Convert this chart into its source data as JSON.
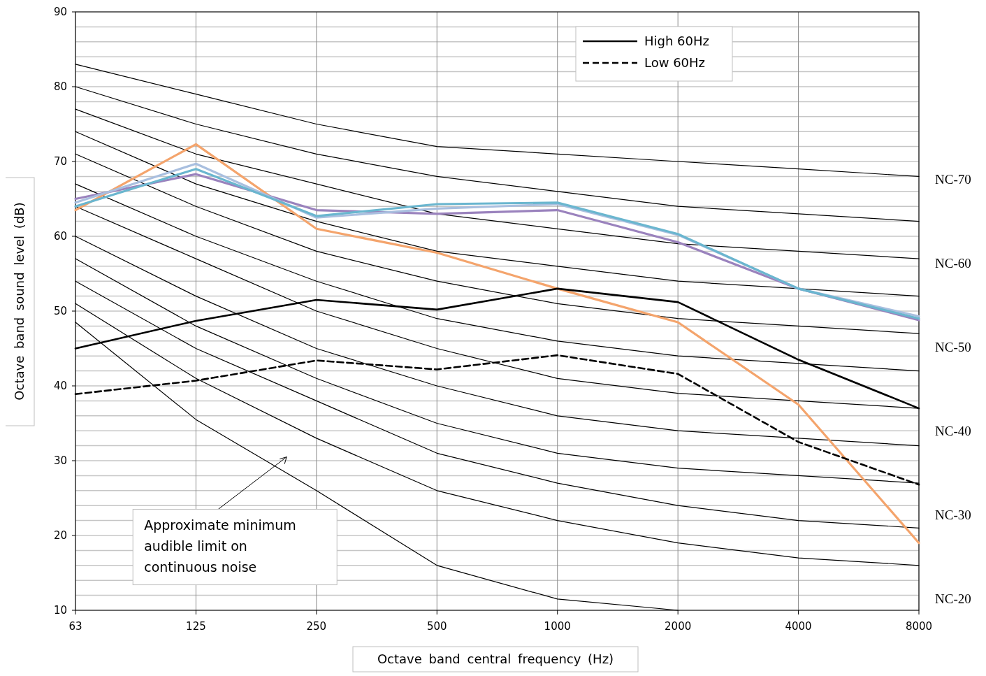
{
  "chart_data": {
    "type": "line",
    "xlabel": "Octave band central frequency (Hz)",
    "ylabel": "Octave band sound level (dB)",
    "categories": [
      "63",
      "125",
      "250",
      "500",
      "1000",
      "2000",
      "4000",
      "8000"
    ],
    "ylim": [
      10,
      90
    ],
    "yticks": [
      10,
      {
        "value": 12,
        "label": null
      },
      {
        "value": 14,
        "label": null
      },
      {
        "value": 16,
        "label": null
      },
      {
        "value": 18,
        "label": null
      },
      20,
      {
        "value": 22,
        "label": null
      },
      {
        "value": 24,
        "label": null
      },
      {
        "value": 26,
        "label": null
      },
      {
        "value": 28,
        "label": null
      },
      30,
      {
        "value": 32,
        "label": null
      },
      {
        "value": 34,
        "label": null
      },
      {
        "value": 36,
        "label": null
      },
      {
        "value": 38,
        "label": null
      },
      40,
      {
        "value": 42,
        "label": null
      },
      {
        "value": 44,
        "label": null
      },
      {
        "value": 46,
        "label": null
      },
      {
        "value": 48,
        "label": null
      },
      50,
      {
        "value": 52,
        "label": null
      },
      {
        "value": 54,
        "label": null
      },
      {
        "value": 56,
        "label": null
      },
      {
        "value": 58,
        "label": null
      },
      60,
      {
        "value": 62,
        "label": null
      },
      {
        "value": 64,
        "label": null
      },
      {
        "value": 66,
        "label": null
      },
      {
        "value": 68,
        "label": null
      },
      70,
      {
        "value": 72,
        "label": null
      },
      {
        "value": 74,
        "label": null
      },
      {
        "value": 76,
        "label": null
      },
      {
        "value": 78,
        "label": null
      },
      80,
      {
        "value": 82,
        "label": null
      },
      {
        "value": 84,
        "label": null
      },
      {
        "value": 86,
        "label": null
      },
      {
        "value": 88,
        "label": null
      },
      90
    ],
    "grid": true,
    "legend": "top",
    "marker": "none",
    "series": [
      {
        "color": "#000000",
        "values": [
          83,
          79,
          75,
          72,
          71,
          70,
          69,
          68
        ]
      },
      {
        "color": "#000000",
        "values": [
          80,
          75,
          71,
          68,
          66,
          64,
          63,
          62
        ]
      },
      {
        "color": "#000000",
        "values": [
          77,
          71,
          67,
          63,
          61,
          59,
          58,
          57
        ]
      },
      {
        "color": "#000000",
        "values": [
          74,
          67,
          62,
          58,
          56,
          54,
          53,
          52
        ]
      },
      {
        "color": "#000000",
        "values": [
          71,
          64,
          58,
          54,
          51,
          49,
          48,
          47
        ]
      },
      {
        "color": "#000000",
        "values": [
          67,
          60,
          54,
          49,
          46,
          44,
          43,
          42
        ]
      },
      {
        "color": "#000000",
        "values": [
          64,
          57,
          50,
          45,
          41,
          39,
          38,
          37
        ]
      },
      {
        "color": "#000000",
        "values": [
          60,
          52,
          45,
          40,
          36,
          34,
          33,
          32
        ]
      },
      {
        "color": "#000000",
        "values": [
          57,
          48,
          41,
          35,
          31,
          29,
          28,
          27
        ]
      },
      {
        "color": "#000000",
        "values": [
          54,
          45,
          38,
          31,
          27,
          24,
          22,
          21
        ]
      },
      {
        "color": "#000000",
        "values": [
          51,
          41,
          33,
          26,
          22,
          19,
          17,
          16
        ]
      },
      {
        "color": "#000000",
        "values": [
          48.5,
          35.5,
          26,
          16,
          11.5,
          10,
          null,
          null
        ]
      },
      {
        "color": "#f4a46c",
        "values": [
          63.5,
          72.3,
          61,
          57.8,
          53,
          48.5,
          37.5,
          19
        ]
      },
      {
        "color": "#9a82bd",
        "values": [
          65,
          68.3,
          63.5,
          63,
          63.5,
          59.2,
          53,
          48.8
        ]
      },
      {
        "color": "#a9bfdf",
        "values": [
          64.5,
          69.7,
          62.5,
          63.7,
          64.3,
          60.2,
          53,
          49.3
        ]
      },
      {
        "color": "#6ab6cf",
        "values": [
          64,
          69,
          62.7,
          64.3,
          64.5,
          60.3,
          53,
          49
        ]
      },
      {
        "name": "High 60Hz",
        "color": "#000000",
        "values": [
          45,
          48.7,
          51.5,
          50.2,
          53,
          51.2,
          43.5,
          37
        ]
      },
      {
        "name": "Low 60Hz",
        "color": "#000000",
        "line_style": "dashed",
        "values": [
          38.9,
          40.7,
          43.4,
          42.2,
          44.1,
          41.6,
          32.5,
          26.8
        ]
      }
    ],
    "annotations": [
      "NC-70",
      "NC-60",
      "NC-50",
      "NC-40",
      "NC-30",
      "NC-20",
      "Approximate minimum audible limit on continuous noise"
    ]
  }
}
